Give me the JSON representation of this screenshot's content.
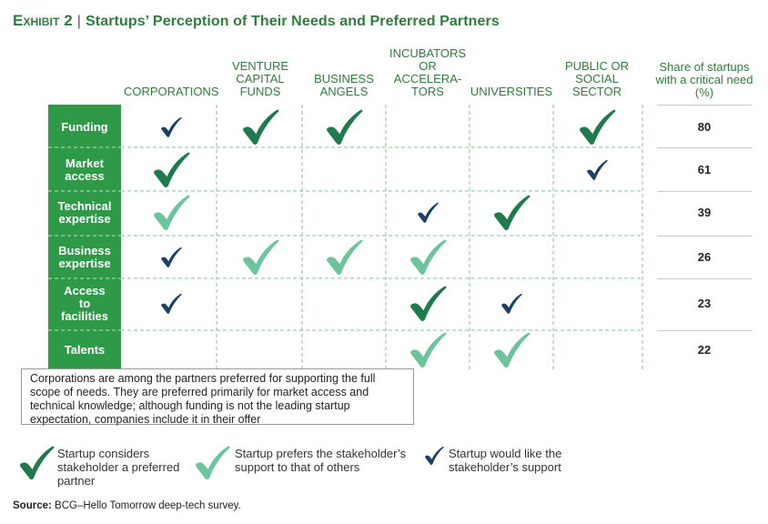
{
  "title": {
    "lead": "Exhibit 2",
    "sep": "|",
    "text": "Startups’ Perception of Their Needs and Preferred Partners"
  },
  "share_header": "Share of startups with a critical need (%)",
  "callout": "Corporations are among the partners preferred for supporting the full scope of needs. They are preferred primarily for market access and technical knowledge; although funding is not the leading startup expectation, companies include it in their offer",
  "legend": [
    {
      "type": "preferred",
      "label": "Startup considers stakeholder a preferred partner"
    },
    {
      "type": "prefers_over_others",
      "label": "Startup prefers the stakeholder’s support to that of others"
    },
    {
      "type": "would_like",
      "label": "Startup would like the stakeholder’s support"
    }
  ],
  "source": {
    "label": "Source:",
    "text": "BCG–Hello Tomorrow deep-tech survey."
  },
  "colors": {
    "preferred": "#1f7a4d",
    "prefers_over_others": "#6cc49c",
    "would_like": "#1b3f66",
    "row_band": "#2e9a47",
    "title": "#2e7d3a"
  },
  "chart_data": {
    "type": "table",
    "columns": [
      [
        "CORPORATIONS"
      ],
      [
        "VENTURE",
        "CAPITAL",
        "FUNDS"
      ],
      [
        "BUSINESS",
        "ANGELS"
      ],
      [
        "INCUBATORS",
        "OR",
        "ACCELERA-",
        "TORS"
      ],
      [
        "UNIVERSITIES"
      ],
      [
        "PUBLIC OR",
        "SOCIAL",
        "SECTOR"
      ]
    ],
    "rows": [
      {
        "label": [
          "Funding"
        ],
        "share": 80,
        "marks": [
          "would_like",
          "preferred",
          "preferred",
          null,
          null,
          "preferred"
        ]
      },
      {
        "label": [
          "Market",
          "access"
        ],
        "share": 61,
        "marks": [
          "preferred",
          null,
          null,
          null,
          null,
          "would_like"
        ]
      },
      {
        "label": [
          "Technical",
          "expertise"
        ],
        "share": 39,
        "marks": [
          "prefers_over_others",
          null,
          null,
          "would_like",
          "preferred",
          null
        ]
      },
      {
        "label": [
          "Business",
          "expertise"
        ],
        "share": 26,
        "marks": [
          "would_like",
          "prefers_over_others",
          "prefers_over_others",
          "prefers_over_others",
          null,
          null
        ]
      },
      {
        "label": [
          "Access",
          "to",
          "facilities"
        ],
        "share": 23,
        "marks": [
          "would_like",
          null,
          null,
          "preferred",
          "would_like",
          null
        ]
      },
      {
        "label": [
          "Talents"
        ],
        "share": 22,
        "marks": [
          null,
          null,
          null,
          "prefers_over_others",
          "prefers_over_others",
          null
        ]
      }
    ]
  }
}
